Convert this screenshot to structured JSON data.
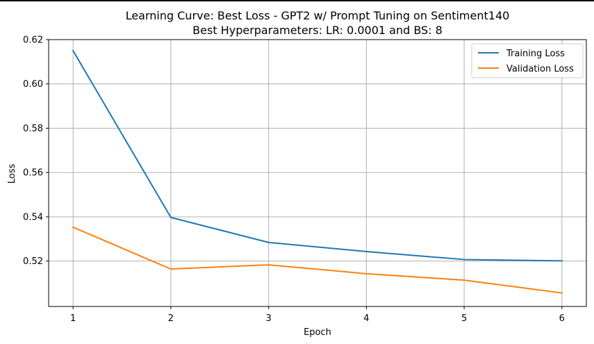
{
  "chart_data": {
    "type": "line",
    "title": "Learning Curve: Best Loss - GPT2 w/ Prompt Tuning on Sentiment140",
    "subtitle": "Best Hyperparameters: LR: 0.0001 and BS: 8",
    "xlabel": "Epoch",
    "ylabel": "Loss",
    "x": [
      1,
      2,
      3,
      4,
      5,
      6
    ],
    "xlim": [
      0.75,
      6.25
    ],
    "ylim": [
      0.4995,
      0.62
    ],
    "x_ticks": [
      "1",
      "2",
      "3",
      "4",
      "5",
      "6"
    ],
    "y_ticks": [
      "0.52",
      "0.54",
      "0.56",
      "0.58",
      "0.60",
      "0.62"
    ],
    "grid": true,
    "legend_position": "top-right",
    "series": [
      {
        "name": "Training Loss",
        "color": "#1f77b4",
        "values": [
          0.615,
          0.5397,
          0.5284,
          0.5243,
          0.5207,
          0.5201
        ]
      },
      {
        "name": "Validation Loss",
        "color": "#ff7f0e",
        "values": [
          0.5353,
          0.5164,
          0.5183,
          0.5143,
          0.5114,
          0.5056
        ]
      }
    ]
  }
}
